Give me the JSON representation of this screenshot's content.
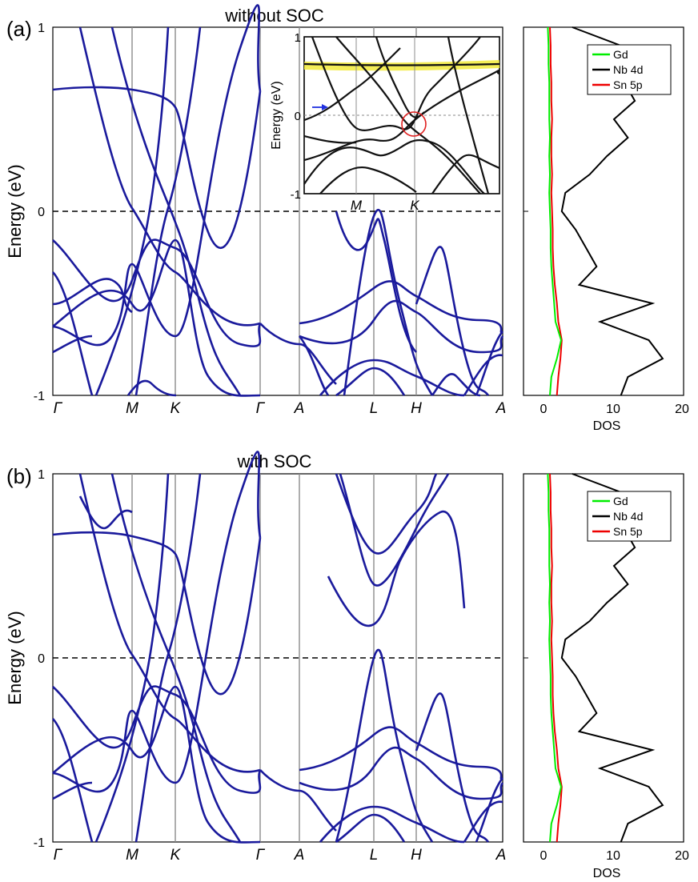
{
  "panels": [
    {
      "label": "(a)",
      "title": "without SOC"
    },
    {
      "label": "(b)",
      "title": "with SOC"
    }
  ],
  "chart_data": [
    {
      "type": "line",
      "panel": "(a)",
      "title": "without SOC",
      "ylabel": "Energy (eV)",
      "ylim": [
        -1,
        1
      ],
      "yticks": [
        "1",
        "0",
        "-1"
      ],
      "kpoints": [
        "Γ",
        "M",
        "K",
        "Γ",
        "A",
        "L",
        "H",
        "A"
      ],
      "fermi_level": 0,
      "x": [
        0,
        1,
        2,
        3,
        4,
        5,
        6,
        7
      ],
      "series": [
        {
          "values": [
            -0.62,
            -0.48,
            -0.3,
            -0.58,
            -0.7,
            -0.02,
            -0.2,
            -0.66
          ]
        },
        {
          "values": [
            -0.75,
            -0.34,
            -0.55,
            -0.75,
            -0.72,
            -0.3,
            -0.42,
            -0.8
          ]
        },
        {
          "values": [
            0.66,
            0.65,
            0.63,
            0.66,
            -0.72,
            -0.62,
            -0.52,
            -0.7
          ]
        },
        {
          "values": [
            -0.68,
            -0.45,
            -0.62,
            -0.62,
            -0.68,
            -0.8,
            -0.72,
            -0.88
          ]
        },
        {
          "values": [
            -0.9,
            -0.55,
            -0.75,
            -0.95,
            -0.98,
            -0.86,
            -0.82,
            -0.95
          ]
        }
      ],
      "inset": {
        "ylabel": "Energy (eV)",
        "ylim": [
          -1,
          1
        ],
        "yticks": [
          "1",
          "0",
          "-1"
        ],
        "kpoints": [
          "M",
          "K"
        ],
        "highlight_band_energy": 0.64,
        "series": [
          {
            "values": [
              0.2,
              0.02,
              -0.3
            ]
          },
          {
            "values": [
              -0.25,
              -0.15,
              0.15
            ]
          },
          {
            "values": [
              -0.35,
              -0.45,
              -0.55
            ]
          },
          {
            "values": [
              0.75,
              0.62,
              0.4
            ]
          }
        ]
      },
      "dos": {
        "xlabel": "DOS",
        "xlim": [
          -3,
          20
        ],
        "xticks": [
          "0",
          "10",
          "20"
        ],
        "legend": [
          {
            "name": "Gd",
            "color": "#00ee00"
          },
          {
            "name": "Nb  4d",
            "color": "#000000"
          },
          {
            "name": "Sn  5p",
            "color": "#ee0000"
          }
        ],
        "energy": [
          1.0,
          0.9,
          0.8,
          0.7,
          0.6,
          0.5,
          0.4,
          0.3,
          0.2,
          0.1,
          0.0,
          -0.1,
          -0.2,
          -0.3,
          -0.4,
          -0.5,
          -0.6,
          -0.7,
          -0.8,
          -0.9,
          -1.0
        ],
        "nb_4d": [
          4,
          11,
          12.5,
          11.5,
          13,
          10,
          12,
          9,
          6.5,
          3,
          2.5,
          4.5,
          6,
          7.5,
          5,
          15.5,
          8,
          15,
          17,
          12,
          11
        ],
        "gd": [
          0.5,
          0.6,
          0.6,
          0.7,
          0.7,
          0.7,
          0.8,
          0.7,
          0.8,
          0.7,
          0.8,
          0.9,
          0.9,
          1.0,
          1.2,
          1.4,
          1.6,
          2.4,
          1.8,
          1.0,
          0.8
        ],
        "sn_5p": [
          0.8,
          0.9,
          0.9,
          1.0,
          1.0,
          1.1,
          1.0,
          1.0,
          1.1,
          1.0,
          1.1,
          1.2,
          1.2,
          1.3,
          1.5,
          1.8,
          2.0,
          2.5,
          2.3,
          2.0,
          1.8
        ]
      }
    },
    {
      "type": "line",
      "panel": "(b)",
      "title": "with SOC",
      "ylabel": "Energy (eV)",
      "ylim": [
        -1,
        1
      ],
      "yticks": [
        "1",
        "0",
        "-1"
      ],
      "kpoints": [
        "Γ",
        "M",
        "K",
        "Γ",
        "A",
        "L",
        "H",
        "A"
      ],
      "fermi_level": 0,
      "x": [
        0,
        1,
        2,
        3,
        4,
        5,
        6,
        7
      ],
      "series": [
        {
          "values": [
            -0.62,
            -0.4,
            -0.35,
            -0.6,
            -0.6,
            0.3,
            0.45,
            -0.58
          ]
        },
        {
          "values": [
            -0.75,
            -0.3,
            -0.5,
            -0.7,
            -0.65,
            -0.28,
            -0.42,
            -0.75
          ]
        },
        {
          "values": [
            0.66,
            0.62,
            0.6,
            0.66,
            -0.68,
            0.6,
            0.75,
            -0.7
          ]
        },
        {
          "values": [
            -0.68,
            -0.45,
            -0.6,
            -0.65,
            -0.72,
            -0.55,
            -0.48,
            -0.82
          ]
        },
        {
          "values": [
            -0.9,
            -0.55,
            -0.7,
            -0.95,
            -0.98,
            -0.85,
            -0.8,
            -0.95
          ]
        }
      ],
      "dos": {
        "xlabel": "DOS",
        "xlim": [
          -3,
          20
        ],
        "xticks": [
          "0",
          "10",
          "20"
        ],
        "legend": [
          {
            "name": "Gd",
            "color": "#00ee00"
          },
          {
            "name": "Nb  4d",
            "color": "#000000"
          },
          {
            "name": "Sn  5p",
            "color": "#ee0000"
          }
        ],
        "energy": [
          1.0,
          0.9,
          0.8,
          0.7,
          0.6,
          0.5,
          0.4,
          0.3,
          0.2,
          0.1,
          0.0,
          -0.1,
          -0.2,
          -0.3,
          -0.4,
          -0.5,
          -0.6,
          -0.7,
          -0.8,
          -0.9,
          -1.0
        ],
        "nb_4d": [
          4,
          11,
          12.5,
          11.5,
          13,
          10,
          12,
          9,
          6.5,
          3,
          2.5,
          4.5,
          6,
          7.5,
          5,
          15.5,
          8,
          15,
          17,
          12,
          11
        ],
        "gd": [
          0.5,
          0.6,
          0.6,
          0.7,
          0.7,
          0.7,
          0.8,
          0.7,
          0.8,
          0.7,
          0.8,
          0.9,
          0.9,
          1.0,
          1.2,
          1.4,
          1.6,
          2.4,
          1.8,
          1.0,
          0.8
        ],
        "sn_5p": [
          0.8,
          0.9,
          0.9,
          1.0,
          1.0,
          1.1,
          1.0,
          1.0,
          1.1,
          1.0,
          1.1,
          1.2,
          1.2,
          1.3,
          1.5,
          1.8,
          2.0,
          2.5,
          2.3,
          2.0,
          1.8
        ]
      }
    }
  ],
  "colors": {
    "band": "#1a1a9c",
    "inset_band": "#111111",
    "highlight": "#f2ea3a",
    "circle": "#e02020",
    "arrow": "#2030e0",
    "kline": "#8c8c8c"
  }
}
